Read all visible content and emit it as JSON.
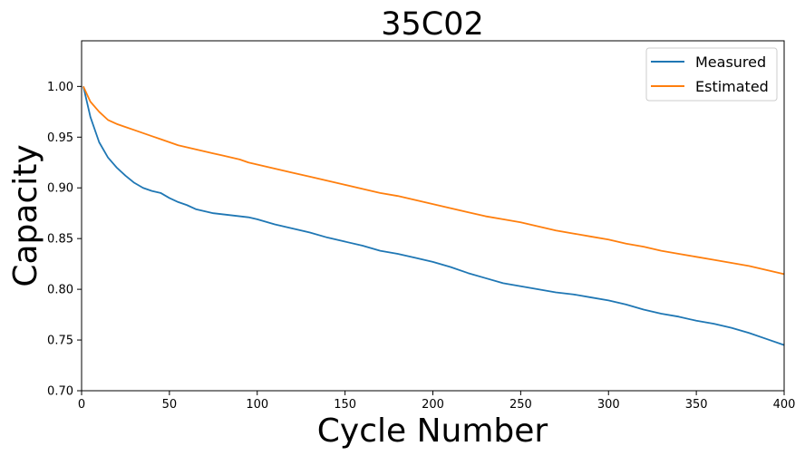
{
  "chart_data": {
    "type": "line",
    "title": "35C02",
    "xlabel": "Cycle Number",
    "ylabel": "Capacity",
    "xlim": [
      0,
      400
    ],
    "ylim": [
      0.7,
      1.045
    ],
    "xticks": [
      "0",
      "50",
      "100",
      "150",
      "200",
      "250",
      "300",
      "350",
      "400"
    ],
    "yticks": [
      "0.70",
      "0.75",
      "0.80",
      "0.85",
      "0.90",
      "0.95",
      "1.00"
    ],
    "grid": false,
    "legend_position": "top-right",
    "series": [
      {
        "name": "Measured",
        "color": "#1f77b4",
        "x": [
          1,
          5,
          10,
          15,
          20,
          25,
          30,
          35,
          40,
          45,
          50,
          55,
          60,
          65,
          70,
          75,
          80,
          85,
          90,
          95,
          100,
          110,
          120,
          130,
          140,
          150,
          160,
          170,
          180,
          190,
          200,
          210,
          220,
          230,
          240,
          250,
          260,
          270,
          280,
          290,
          300,
          310,
          320,
          330,
          340,
          350,
          360,
          370,
          380,
          390,
          400
        ],
        "y": [
          1.0,
          0.97,
          0.945,
          0.93,
          0.92,
          0.912,
          0.905,
          0.9,
          0.897,
          0.895,
          0.89,
          0.886,
          0.883,
          0.879,
          0.877,
          0.875,
          0.874,
          0.873,
          0.872,
          0.871,
          0.869,
          0.864,
          0.86,
          0.856,
          0.851,
          0.847,
          0.843,
          0.838,
          0.835,
          0.831,
          0.827,
          0.822,
          0.816,
          0.811,
          0.806,
          0.803,
          0.8,
          0.797,
          0.795,
          0.792,
          0.789,
          0.785,
          0.78,
          0.776,
          0.773,
          0.769,
          0.766,
          0.762,
          0.757,
          0.751,
          0.745
        ]
      },
      {
        "name": "Estimated",
        "color": "#ff7f0e",
        "x": [
          1,
          5,
          10,
          15,
          20,
          25,
          30,
          35,
          40,
          45,
          50,
          55,
          60,
          65,
          70,
          75,
          80,
          85,
          90,
          95,
          100,
          110,
          120,
          130,
          140,
          150,
          160,
          170,
          180,
          190,
          200,
          210,
          220,
          230,
          240,
          250,
          260,
          270,
          280,
          290,
          300,
          310,
          320,
          330,
          340,
          350,
          360,
          370,
          380,
          390,
          400
        ],
        "y": [
          1.0,
          0.985,
          0.975,
          0.967,
          0.963,
          0.96,
          0.957,
          0.954,
          0.951,
          0.948,
          0.945,
          0.942,
          0.94,
          0.938,
          0.936,
          0.934,
          0.932,
          0.93,
          0.928,
          0.925,
          0.923,
          0.919,
          0.915,
          0.911,
          0.907,
          0.903,
          0.899,
          0.895,
          0.892,
          0.888,
          0.884,
          0.88,
          0.876,
          0.872,
          0.869,
          0.866,
          0.862,
          0.858,
          0.855,
          0.852,
          0.849,
          0.845,
          0.842,
          0.838,
          0.835,
          0.832,
          0.829,
          0.826,
          0.823,
          0.819,
          0.815
        ]
      }
    ]
  }
}
